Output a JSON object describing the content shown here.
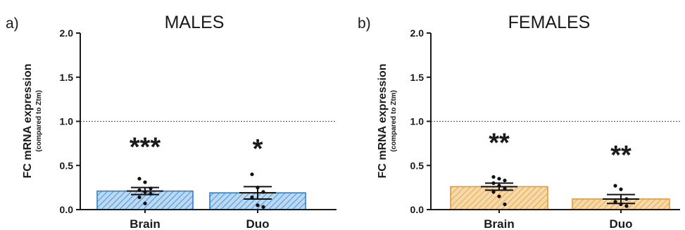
{
  "colors": {
    "males_fill": "#bcd9f4",
    "males_stroke": "#2e7fd6",
    "females_fill": "#f7d9a8",
    "females_stroke": "#e29a3c",
    "axis": "#1a1a1a"
  },
  "chart_data": [
    {
      "type": "bar",
      "panel_label": "a)",
      "title": "MALES",
      "ylabel": "FC mRNA expression",
      "ylabel_sub": "(compared to Ztm)",
      "ylim": [
        0,
        2.0
      ],
      "yticks": [
        "0.0",
        "0.5",
        "1.0",
        "1.5",
        "2.0"
      ],
      "reference_line": 1.0,
      "categories": [
        "Brain",
        "Duo"
      ],
      "values": [
        0.21,
        0.19
      ],
      "error": [
        0.04,
        0.07
      ],
      "significance": [
        "***",
        "*"
      ],
      "points": [
        [
          0.35,
          0.31,
          0.24,
          0.22,
          0.2,
          0.18,
          0.14,
          0.07
        ],
        [
          0.4,
          0.25,
          0.2,
          0.14,
          0.05,
          0.03
        ]
      ]
    },
    {
      "type": "bar",
      "panel_label": "b)",
      "title": "FEMALES",
      "ylabel": "FC mRNA expression",
      "ylabel_sub": "(compared to Ztm)",
      "ylim": [
        0,
        2.0
      ],
      "yticks": [
        "0.0",
        "0.5",
        "1.0",
        "1.5",
        "2.0"
      ],
      "reference_line": 1.0,
      "categories": [
        "Brain",
        "Duo"
      ],
      "values": [
        0.26,
        0.12
      ],
      "error": [
        0.04,
        0.05
      ],
      "significance": [
        "**",
        "**"
      ],
      "points": [
        [
          0.37,
          0.35,
          0.33,
          0.3,
          0.27,
          0.24,
          0.2,
          0.15,
          0.06
        ],
        [
          0.27,
          0.23,
          0.12,
          0.09,
          0.06,
          0.04
        ]
      ]
    }
  ]
}
